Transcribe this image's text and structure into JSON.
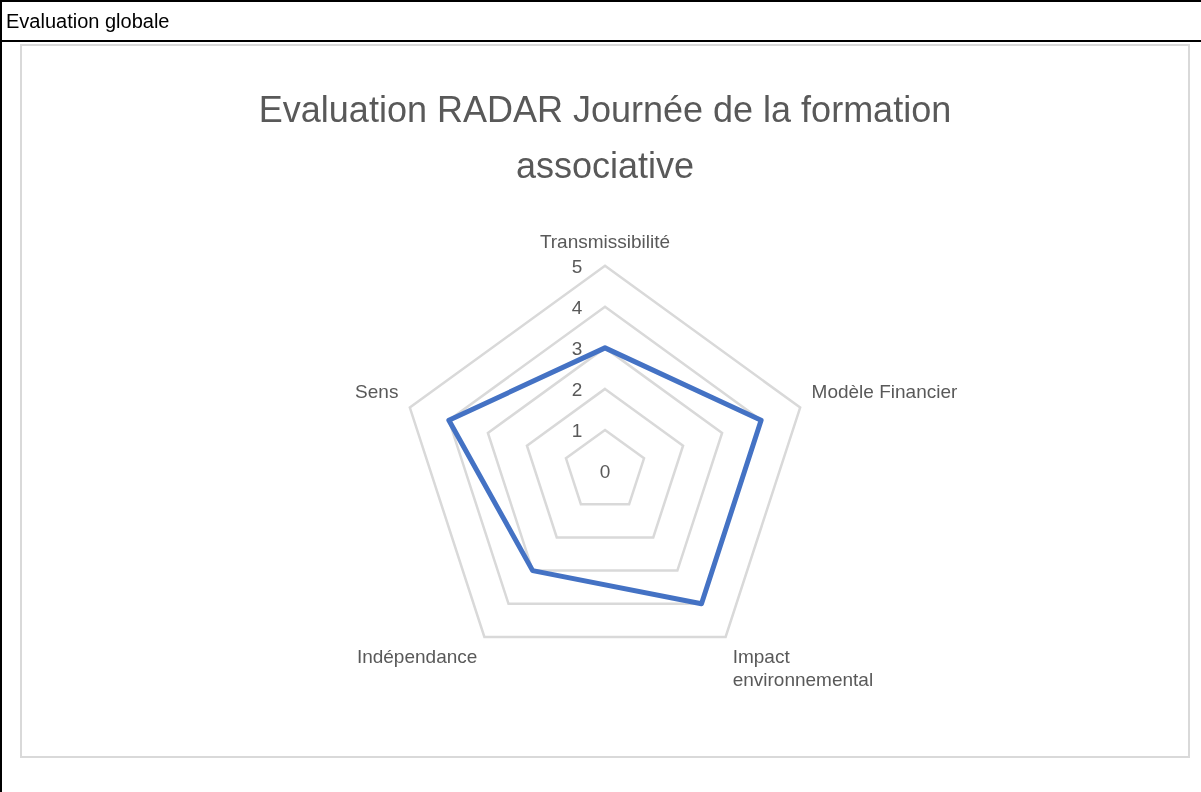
{
  "chart_data": {
    "type": "radar",
    "title": "Evaluation RADAR Journée de la formation associative",
    "annotations": [
      "Evaluation globale"
    ],
    "categories": [
      "Transmissibilité",
      "Modèle Financier",
      "Impact environnemental",
      "Indépendance",
      "Sens"
    ],
    "series": [
      {
        "color": "#4472c4",
        "values": [
          3,
          4,
          4,
          3,
          4
        ]
      }
    ],
    "ylim": [
      0,
      5
    ],
    "yticks": [
      0,
      1,
      2,
      3,
      4,
      5
    ],
    "grid": true,
    "legend": false,
    "marker": "none",
    "line_style": "solid"
  }
}
